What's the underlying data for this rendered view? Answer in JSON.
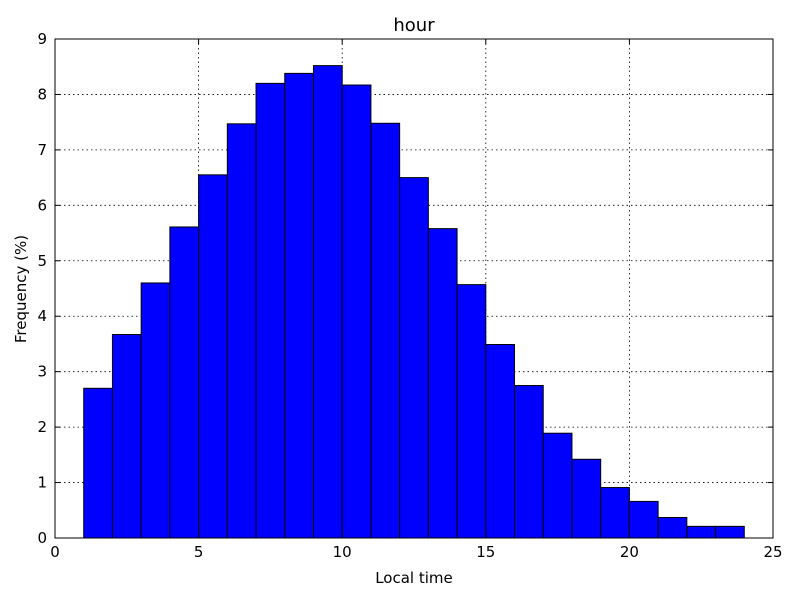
{
  "chart_data": {
    "type": "bar",
    "title": "hour",
    "xlabel": "Local time",
    "ylabel": "Frequency (%)",
    "xlim": [
      0,
      25
    ],
    "ylim": [
      0,
      9
    ],
    "xticks": [
      0,
      5,
      10,
      15,
      20,
      25
    ],
    "yticks": [
      0,
      1,
      2,
      3,
      4,
      5,
      6,
      7,
      8,
      9
    ],
    "grid": true,
    "bar_color": "#0000ff",
    "bins": [
      {
        "start": 0,
        "end": 1,
        "value": 0.0
      },
      {
        "start": 1,
        "end": 2,
        "value": 2.7
      },
      {
        "start": 2,
        "end": 3,
        "value": 3.67
      },
      {
        "start": 3,
        "end": 4,
        "value": 4.6
      },
      {
        "start": 4,
        "end": 5,
        "value": 5.61
      },
      {
        "start": 5,
        "end": 6,
        "value": 6.55
      },
      {
        "start": 6,
        "end": 7,
        "value": 7.47
      },
      {
        "start": 7,
        "end": 8,
        "value": 8.2
      },
      {
        "start": 8,
        "end": 9,
        "value": 8.38
      },
      {
        "start": 9,
        "end": 10,
        "value": 8.52
      },
      {
        "start": 10,
        "end": 11,
        "value": 8.17
      },
      {
        "start": 11,
        "end": 12,
        "value": 7.48
      },
      {
        "start": 12,
        "end": 13,
        "value": 6.5
      },
      {
        "start": 13,
        "end": 14,
        "value": 5.58
      },
      {
        "start": 14,
        "end": 15,
        "value": 4.57
      },
      {
        "start": 15,
        "end": 16,
        "value": 3.49
      },
      {
        "start": 16,
        "end": 17,
        "value": 2.75
      },
      {
        "start": 17,
        "end": 18,
        "value": 1.89
      },
      {
        "start": 18,
        "end": 19,
        "value": 1.42
      },
      {
        "start": 19,
        "end": 20,
        "value": 0.91
      },
      {
        "start": 20,
        "end": 21,
        "value": 0.66
      },
      {
        "start": 21,
        "end": 22,
        "value": 0.37
      },
      {
        "start": 22,
        "end": 23,
        "value": 0.21
      },
      {
        "start": 23,
        "end": 24,
        "value": 0.21
      }
    ]
  }
}
